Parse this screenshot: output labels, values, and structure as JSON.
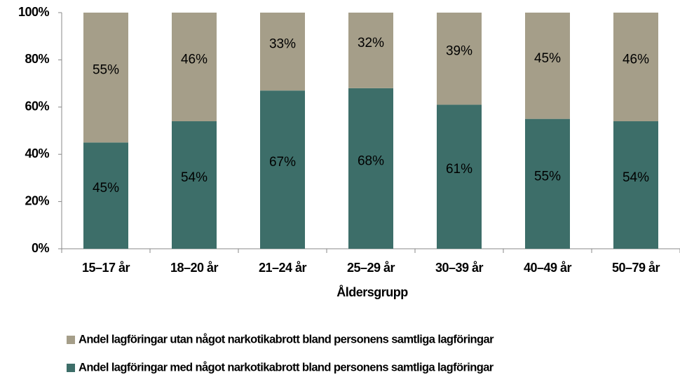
{
  "chart_data": {
    "type": "stacked_bar",
    "x_label": "Åldersgrupp",
    "categories": [
      "15–17 år",
      "18–20 år",
      "21–24 år",
      "25–29 år",
      "30–39 år",
      "40–49 år",
      "50–79 år"
    ],
    "series": [
      {
        "name": "Andel lagföringar med något narkotikabrott bland personens samtliga lagföringar",
        "color": "#3d6e69",
        "values": [
          45,
          54,
          67,
          68,
          61,
          55,
          54
        ],
        "value_labels": [
          "45%",
          "54%",
          "67%",
          "68%",
          "61%",
          "55%",
          "54%"
        ]
      },
      {
        "name": "Andel lagföringar utan något narkotikabrott bland personens samtliga lagföringar",
        "color": "#a59e89",
        "values": [
          55,
          46,
          33,
          32,
          39,
          45,
          46
        ],
        "value_labels": [
          "55%",
          "46%",
          "33%",
          "32%",
          "39%",
          "45%",
          "46%"
        ]
      }
    ],
    "ylim": [
      0,
      100
    ],
    "yticks": [
      {
        "value": 0,
        "label": "0%"
      },
      {
        "value": 20,
        "label": "20%"
      },
      {
        "value": 40,
        "label": "40%"
      },
      {
        "value": 60,
        "label": "60%"
      },
      {
        "value": 80,
        "label": "80%"
      },
      {
        "value": 100,
        "label": "100%"
      }
    ],
    "grid": false,
    "legend": "bottom"
  }
}
